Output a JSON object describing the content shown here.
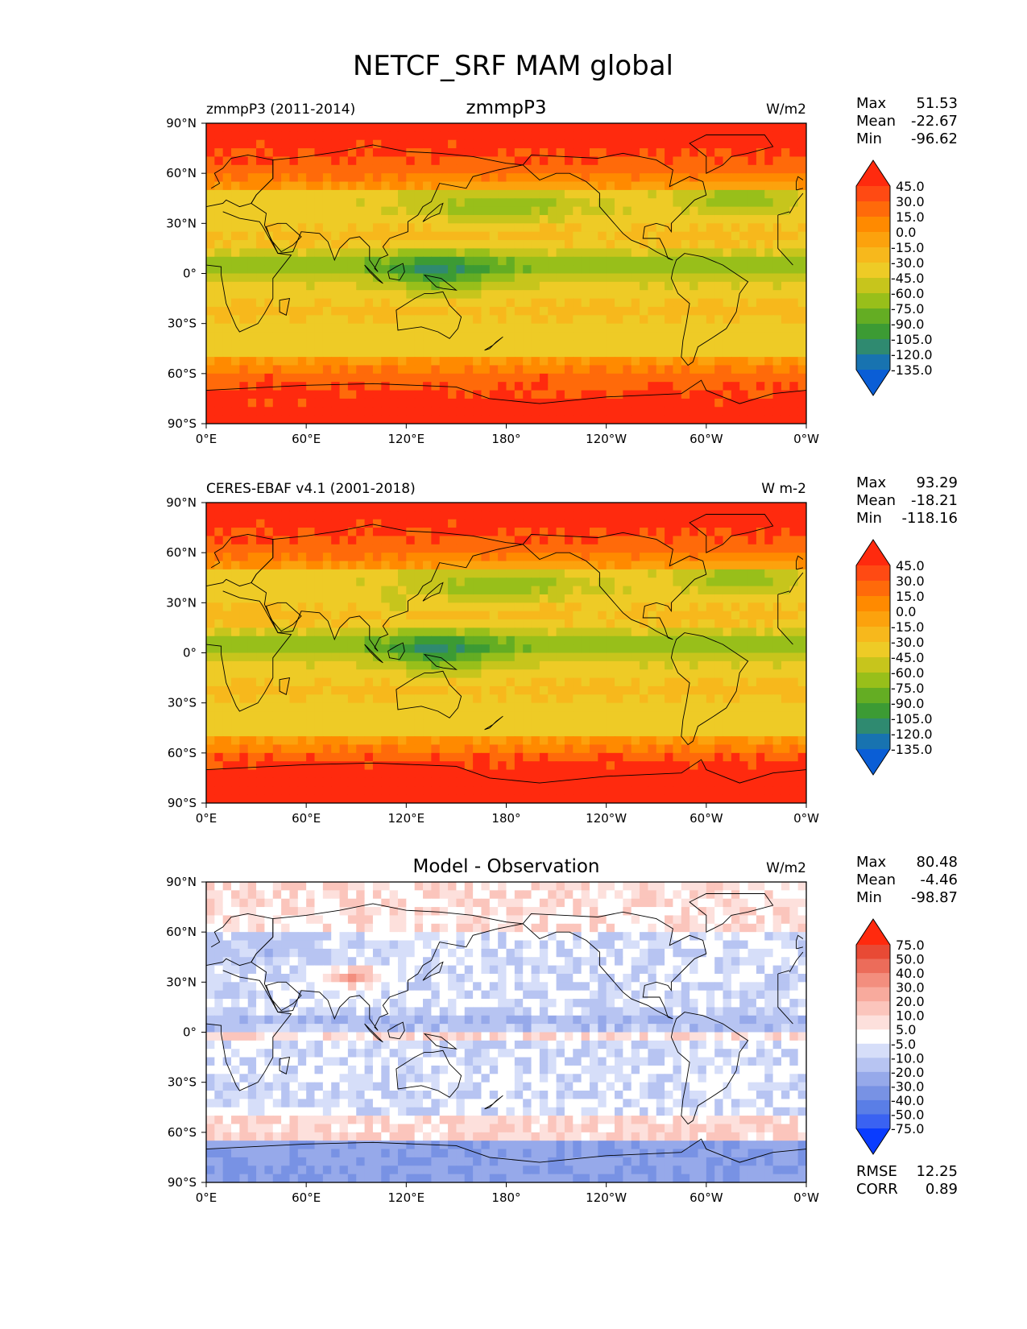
{
  "figure": {
    "title": "NETCF_SRF MAM global"
  },
  "colors": {
    "field_scale": [
      "#0047ff",
      "#0a5ed6",
      "#1873b0",
      "#2f8a70",
      "#3c9b34",
      "#64ad23",
      "#98bf1a",
      "#c7c51c",
      "#eecb26",
      "#f7b81c",
      "#fca20d",
      "#ff8a00",
      "#ff6a0a",
      "#ff4a13",
      "#ff2a0e"
    ],
    "diff_scale": [
      "#0a3cff",
      "#3a62f2",
      "#5a7ee6",
      "#7892e4",
      "#96a9ea",
      "#b7c4f2",
      "#d6def9",
      "#ffffff",
      "#fde0dc",
      "#fbc5bc",
      "#f8aa9d",
      "#f38e7e",
      "#ec6c5a",
      "#e84a35",
      "#ff2a0e"
    ],
    "coastline": "#000000"
  },
  "chart_data": [
    {
      "type": "heatmap",
      "id": "test",
      "left_title": "zmmpP3 (2011-2014)",
      "center_title": "zmmpP3",
      "right_title": "W/m2",
      "y_ticks": [
        "90°N",
        "60°N",
        "30°N",
        "0°",
        "30°S",
        "60°S",
        "90°S"
      ],
      "x_ticks": [
        "0°E",
        "60°E",
        "120°E",
        "180°",
        "120°W",
        "60°W",
        "0°W"
      ],
      "xlim": [
        0,
        360
      ],
      "ylim": [
        -90,
        90
      ],
      "stats": {
        "max_label": "Max",
        "max": "51.53",
        "mean_label": "Mean",
        "mean": "-22.67",
        "min_label": "Min",
        "min": "-96.62"
      },
      "colorbar": {
        "levels": [
          "45.0",
          "30.0",
          "15.0",
          "0.0",
          "-15.0",
          "-30.0",
          "-45.0",
          "-60.0",
          "-75.0",
          "-90.0",
          "-105.0",
          "-120.0",
          "-135.0"
        ],
        "scale": "field_scale"
      }
    },
    {
      "type": "heatmap",
      "id": "reference",
      "left_title": "CERES-EBAF v4.1 (2001-2018)",
      "center_title": "",
      "right_title": "W m-2",
      "y_ticks": [
        "90°N",
        "60°N",
        "30°N",
        "0°",
        "30°S",
        "60°S",
        "90°S"
      ],
      "x_ticks": [
        "0°E",
        "60°E",
        "120°E",
        "180°",
        "120°W",
        "60°W",
        "0°W"
      ],
      "xlim": [
        0,
        360
      ],
      "ylim": [
        -90,
        90
      ],
      "stats": {
        "max_label": "Max",
        "max": "93.29",
        "mean_label": "Mean",
        "mean": "-18.21",
        "min_label": "Min",
        "min": "-118.16"
      },
      "colorbar": {
        "levels": [
          "45.0",
          "30.0",
          "15.0",
          "0.0",
          "-15.0",
          "-30.0",
          "-45.0",
          "-60.0",
          "-75.0",
          "-90.0",
          "-105.0",
          "-120.0",
          "-135.0"
        ],
        "scale": "field_scale"
      }
    },
    {
      "type": "heatmap",
      "id": "difference",
      "left_title": "",
      "center_title": "Model - Observation",
      "right_title": "W/m2",
      "y_ticks": [
        "90°N",
        "60°N",
        "30°N",
        "0°",
        "30°S",
        "60°S",
        "90°S"
      ],
      "x_ticks": [
        "0°E",
        "60°E",
        "120°E",
        "180°",
        "120°W",
        "60°W",
        "0°W"
      ],
      "xlim": [
        0,
        360
      ],
      "ylim": [
        -90,
        90
      ],
      "stats": {
        "max_label": "Max",
        "max": "80.48",
        "mean_label": "Mean",
        "mean": "-4.46",
        "min_label": "Min",
        "min": "-98.87"
      },
      "colorbar": {
        "levels": [
          "75.0",
          "50.0",
          "40.0",
          "30.0",
          "20.0",
          "10.0",
          "5.0",
          "-5.0",
          "-10.0",
          "-20.0",
          "-30.0",
          "-40.0",
          "-50.0",
          "-75.0"
        ],
        "scale": "diff_scale"
      },
      "metrics": {
        "rmse_label": "RMSE",
        "rmse": "12.25",
        "corr_label": "CORR",
        "corr": "0.89"
      }
    }
  ]
}
